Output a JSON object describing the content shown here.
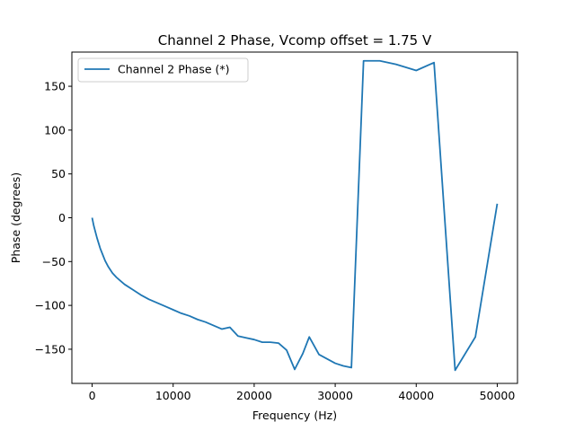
{
  "chart_data": {
    "type": "line",
    "title": "Channel 2 Phase, Vcomp offset = 1.75 V",
    "xlabel": "Frequency (Hz)",
    "ylabel": "Phase (degrees)",
    "xlim": [
      -2500,
      52500
    ],
    "ylim": [
      -189,
      189
    ],
    "xticks": [
      0,
      10000,
      20000,
      30000,
      40000,
      50000
    ],
    "xtick_labels": [
      "0",
      "10000",
      "20000",
      "30000",
      "40000",
      "50000"
    ],
    "yticks": [
      -150,
      -100,
      -50,
      0,
      50,
      100,
      150
    ],
    "ytick_labels": [
      "−150",
      "−100",
      "−50",
      "0",
      "50",
      "100",
      "150"
    ],
    "grid": false,
    "legend_position": "upper-left",
    "series": [
      {
        "name": "Channel 2 Phase (*)",
        "color": "#1f77b4",
        "x": [
          0,
          200,
          400,
          600,
          800,
          1000,
          1300,
          1600,
          2000,
          2500,
          3000,
          3500,
          4000,
          5000,
          6000,
          7000,
          8000,
          9000,
          10000,
          11000,
          12000,
          13000,
          14000,
          15000,
          16000,
          17000,
          18000,
          19000,
          20000,
          21000,
          22000,
          23000,
          24000,
          25000,
          26000,
          26800,
          28000,
          29000,
          30000,
          31000,
          32000,
          33500,
          35500,
          37500,
          40000,
          42200,
          44800,
          47300,
          50000
        ],
        "y": [
          0,
          -9,
          -16,
          -23,
          -29,
          -35,
          -42,
          -49,
          -56,
          -63,
          -68,
          -72,
          -76,
          -82,
          -88,
          -93,
          -97,
          -101,
          -105,
          -109,
          -112,
          -116,
          -119,
          -123,
          -127,
          -125,
          -135,
          -137,
          -139,
          -142,
          -142,
          -143,
          -151,
          -173,
          -155,
          -136,
          -156,
          -161,
          -166,
          -169,
          -171,
          179,
          179,
          175,
          168,
          177,
          -174,
          -136,
          16
        ]
      }
    ]
  }
}
